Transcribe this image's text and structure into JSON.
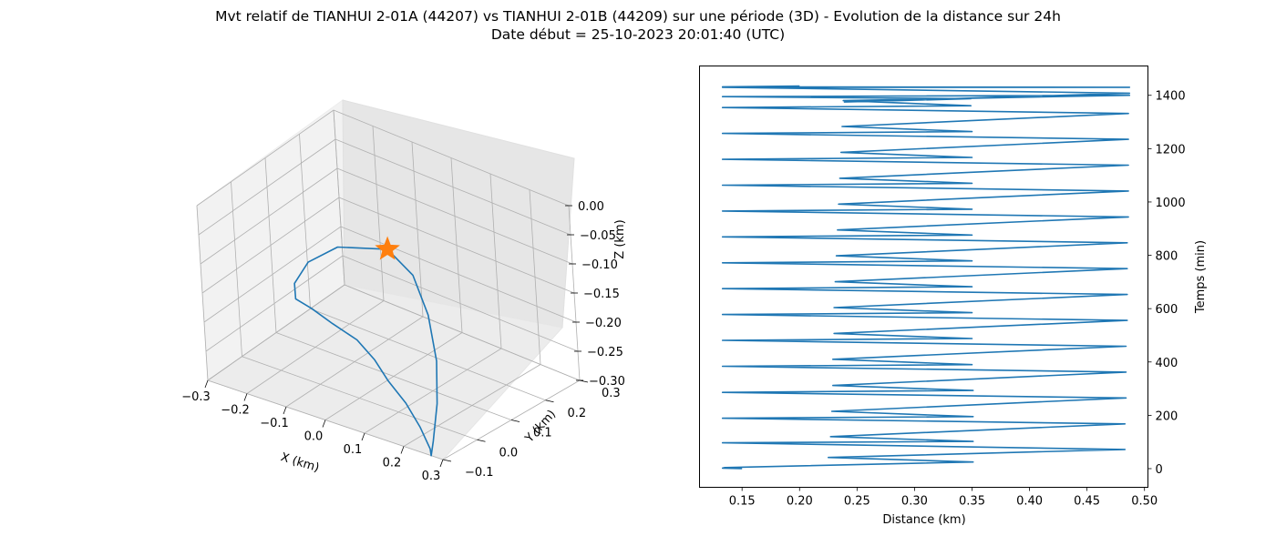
{
  "figure": {
    "title_line1": "Mvt relatif de TIANHUI 2-01A (44207) vs TIANHUI 2-01B (44209) sur une période (3D) - Evolution de la distance sur 24h",
    "title_line2": "Date début = 25-10-2023 20:01:40 (UTC)"
  },
  "colors": {
    "line": "#1f77b4",
    "marker": "#ff7f0e",
    "pane": "#f2f2f2",
    "grid": "#b0b0b0"
  },
  "chart_data": [
    {
      "type": "line3d",
      "xlabel": "X (km)",
      "ylabel": "Y (km)",
      "zlabel": "Z (km)",
      "xlim": [
        -0.3,
        0.3
      ],
      "ylim": [
        -0.1,
        0.3
      ],
      "zlim": [
        -0.3,
        0.0
      ],
      "x_ticks": [
        "−0.3",
        "−0.2",
        "−0.1",
        "0.0",
        "0.1",
        "0.2",
        "0.3"
      ],
      "y_ticks": [
        "−0.1",
        "0.0",
        "0.1",
        "0.2",
        "0.3"
      ],
      "z_ticks": [
        "0.00",
        "−0.05",
        "−0.10",
        "−0.15",
        "−0.20",
        "−0.25",
        "−0.30"
      ],
      "grid": true,
      "marker": {
        "shape": "star",
        "point": [
          -0.07,
          0.18,
          -0.13
        ]
      },
      "series": [
        {
          "x": [
            -0.07,
            0.02,
            0.1,
            0.17,
            0.22,
            0.25,
            0.27,
            0.25,
            0.19,
            0.12,
            0.05,
            -0.02,
            -0.09,
            -0.17,
            -0.24,
            -0.29,
            -0.3,
            -0.27,
            -0.2,
            -0.07
          ],
          "y": [
            0.18,
            0.15,
            0.1,
            0.04,
            -0.02,
            -0.07,
            -0.1,
            -0.08,
            -0.04,
            0.0,
            0.03,
            0.07,
            0.1,
            0.12,
            0.14,
            0.15,
            0.16,
            0.17,
            0.18,
            0.18
          ],
          "z": [
            -0.13,
            -0.14,
            -0.17,
            -0.21,
            -0.25,
            -0.29,
            -0.3,
            -0.3,
            -0.29,
            -0.28,
            -0.27,
            -0.265,
            -0.26,
            -0.26,
            -0.26,
            -0.26,
            -0.24,
            -0.2,
            -0.16,
            -0.13
          ]
        }
      ]
    },
    {
      "type": "line",
      "xlabel": "Distance (km)",
      "ylabel": "Temps (min)",
      "xlim": [
        0.113,
        0.503
      ],
      "ylim": [
        -70,
        1510
      ],
      "x_ticks": [
        0.15,
        0.2,
        0.25,
        0.3,
        0.35,
        0.4,
        0.45,
        0.5
      ],
      "y_ticks": [
        0,
        200,
        400,
        600,
        800,
        1000,
        1200,
        1400
      ],
      "x_tick_labels": [
        "0.15",
        "0.20",
        "0.25",
        "0.30",
        "0.35",
        "0.40",
        "0.45",
        "0.50"
      ],
      "y_tick_labels": [
        "0",
        "200",
        "400",
        "600",
        "800",
        "1000",
        "1200",
        "1400"
      ],
      "y_axis_side": "right",
      "grid": false,
      "series": [
        {
          "distance": [
            0.15,
            0.133,
            0.135,
            0.351,
            0.225,
            0.483,
            0.133,
            0.351,
            0.227,
            0.483,
            0.133,
            0.351,
            0.228,
            0.484,
            0.133,
            0.351,
            0.229,
            0.484,
            0.133,
            0.35,
            0.229,
            0.484,
            0.133,
            0.35,
            0.23,
            0.485,
            0.133,
            0.35,
            0.23,
            0.485,
            0.133,
            0.35,
            0.231,
            0.485,
            0.133,
            0.35,
            0.232,
            0.485,
            0.133,
            0.35,
            0.233,
            0.486,
            0.133,
            0.35,
            0.234,
            0.486,
            0.133,
            0.35,
            0.235,
            0.486,
            0.133,
            0.35,
            0.236,
            0.486,
            0.133,
            0.35,
            0.237,
            0.486,
            0.133,
            0.349,
            0.238,
            0.487,
            0.133,
            0.349,
            0.239,
            0.487,
            0.133,
            0.349,
            0.24,
            0.487,
            0.133,
            0.2
          ],
          "time": [
            0,
            2,
            4,
            25,
            42,
            72,
            97,
            102,
            120,
            168,
            189,
            195,
            215,
            265,
            286,
            293,
            312,
            362,
            384,
            390,
            410,
            459,
            481,
            488,
            507,
            556,
            578,
            585,
            604,
            653,
            675,
            682,
            701,
            750,
            772,
            779,
            798,
            847,
            869,
            876,
            895,
            944,
            966,
            973,
            992,
            1041,
            1063,
            1070,
            1089,
            1138,
            1160,
            1167,
            1186,
            1235,
            1257,
            1264,
            1283,
            1332,
            1354,
            1361,
            1380,
            1400,
            1395,
            1387,
            1375,
            1408,
            1430,
            1430,
            1430,
            1430,
            1432,
            1435
          ]
        }
      ]
    }
  ]
}
